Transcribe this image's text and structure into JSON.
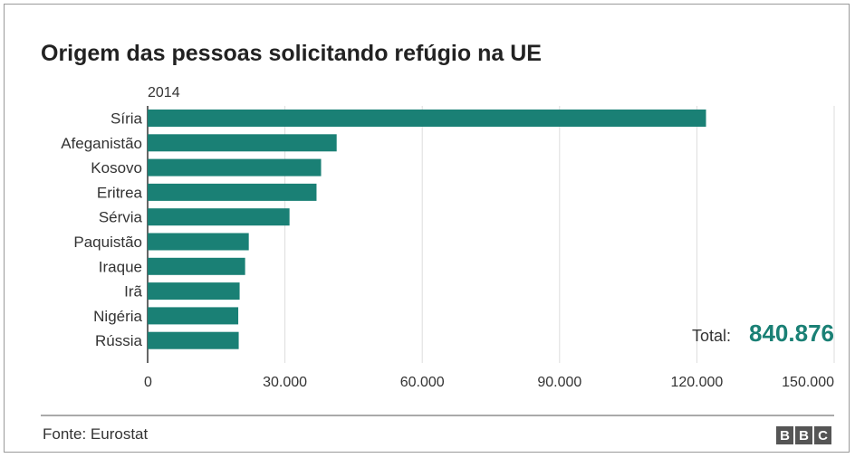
{
  "chart_data": {
    "type": "bar",
    "orientation": "horizontal",
    "title": "Origem das pessoas solicitando refúgio na UE",
    "subtitle": "2014",
    "categories": [
      "Síria",
      "Afeganistão",
      "Kosovo",
      "Eritrea",
      "Sérvia",
      "Paquistão",
      "Iraque",
      "Irã",
      "Nigéria",
      "Rússia"
    ],
    "values": [
      122000,
      41300,
      37900,
      36900,
      31000,
      22100,
      21300,
      20100,
      19800,
      19900
    ],
    "xlim": [
      0,
      150000
    ],
    "xticks": [
      0,
      30000,
      60000,
      90000,
      120000,
      150000
    ],
    "xtick_labels": [
      "0",
      "30.000",
      "60.000",
      "90.000",
      "120.000",
      "150.000"
    ],
    "grid": "vertical",
    "bar_color": "#1a8075",
    "annotation": {
      "label": "Total:",
      "value": "840.876"
    },
    "source": "Fonte: Eurostat",
    "logo": "BBC"
  }
}
